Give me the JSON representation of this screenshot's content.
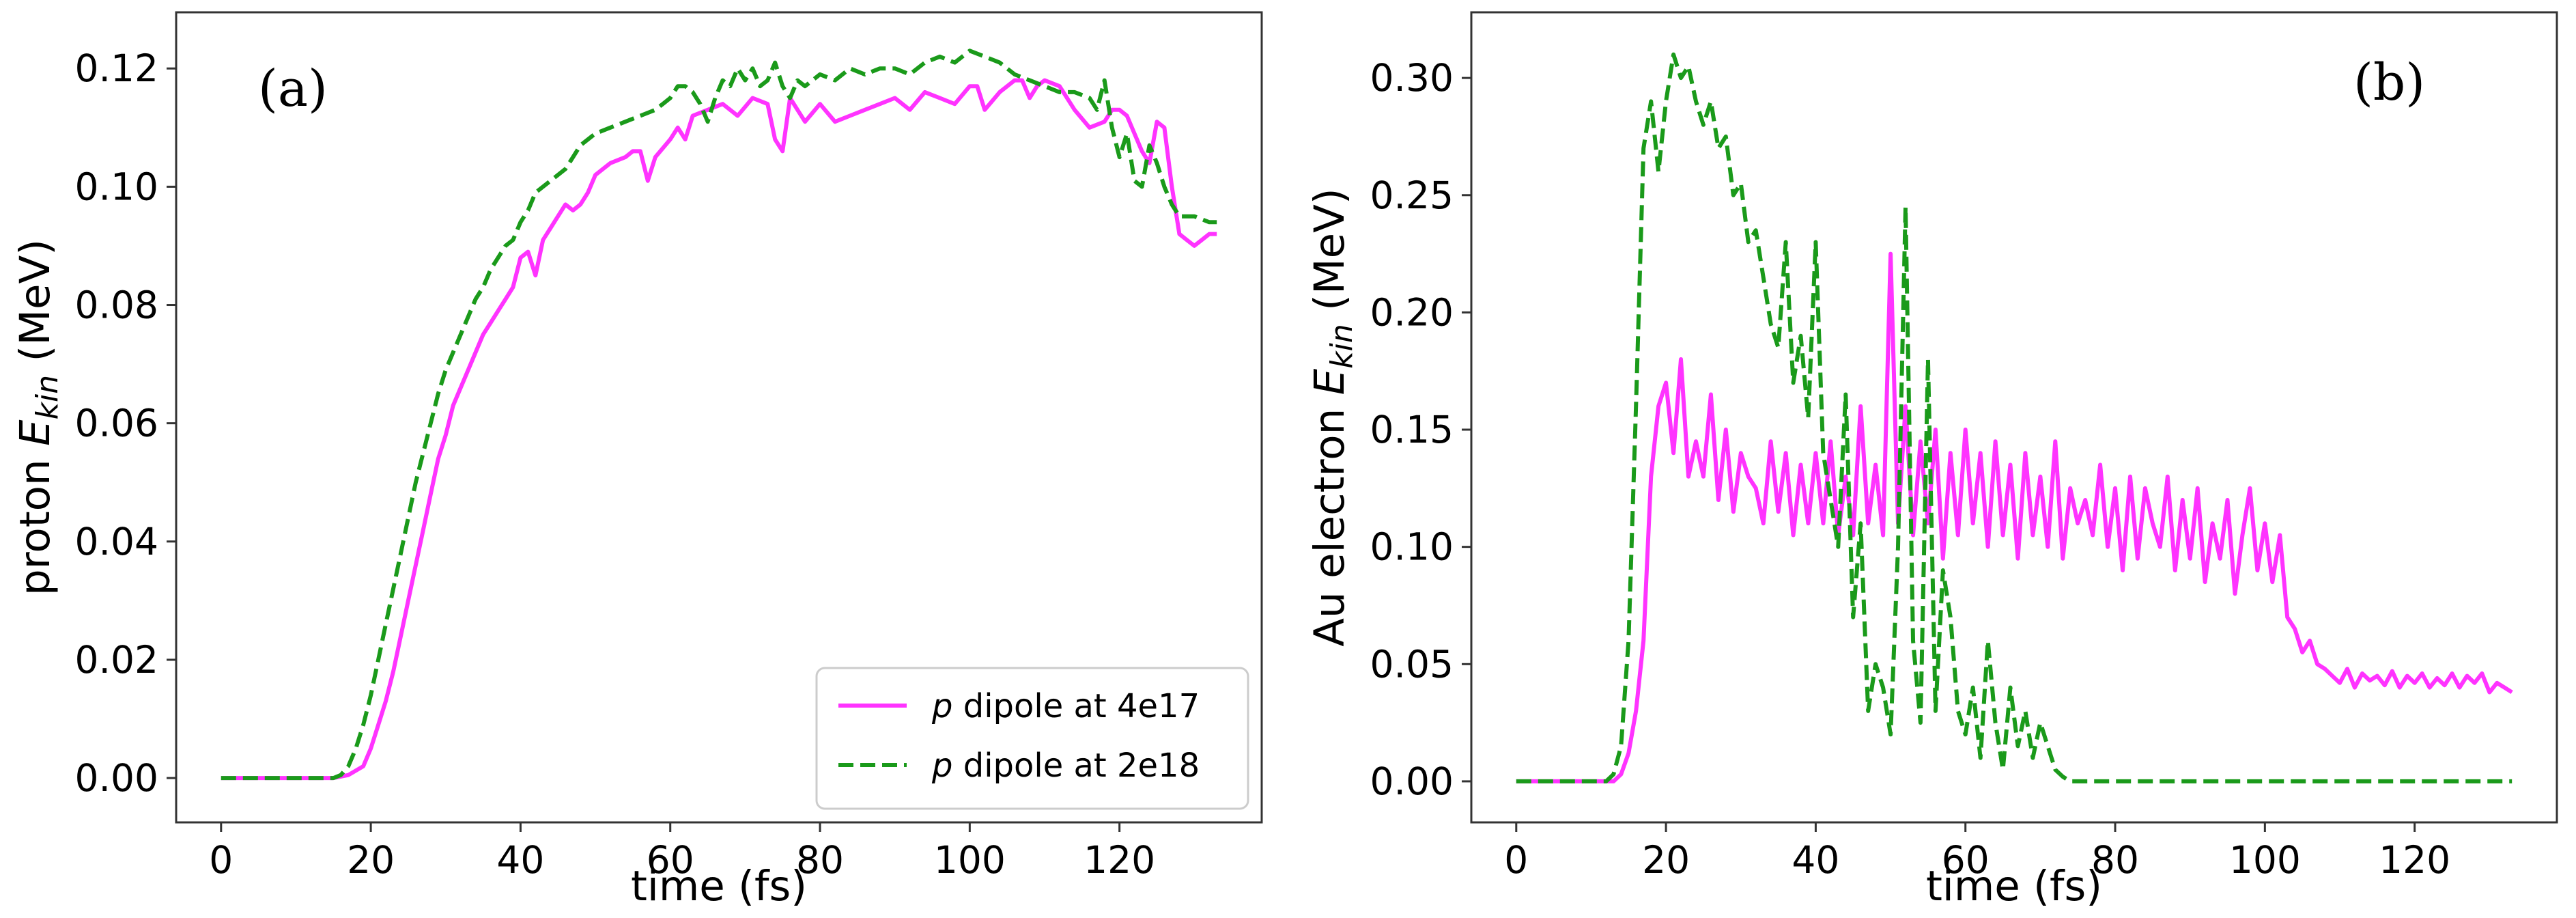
{
  "chart_data": [
    {
      "type": "line",
      "panel_label": "(a)",
      "xlabel": "time (fs)",
      "ylabel_main": "proton ",
      "ylabel_symbol": "E",
      "ylabel_sub": "kin",
      "ylabel_unit": " (MeV)",
      "xlim": [
        -6,
        139
      ],
      "ylim": [
        -0.0075,
        0.1295
      ],
      "xticks": [
        0,
        20,
        40,
        60,
        80,
        100,
        120
      ],
      "yticks": [
        0.0,
        0.02,
        0.04,
        0.06,
        0.08,
        0.1,
        0.12
      ],
      "legend_position": "lower-right",
      "series": [
        {
          "name": "p dipole at 4e17",
          "legend_symbol": "p",
          "legend_rest": " dipole at 4e17",
          "color": "#ff33ff",
          "dash": "solid",
          "x": [
            0,
            8,
            15,
            17,
            19,
            20,
            21,
            22,
            23,
            24,
            25,
            26,
            27,
            28,
            29,
            30,
            31,
            32,
            33,
            34,
            35,
            36,
            37,
            38,
            39,
            40,
            41,
            42,
            43,
            44,
            45,
            46,
            47,
            48,
            49,
            50,
            52,
            54,
            55,
            56,
            57,
            58,
            60,
            61,
            62,
            63,
            65,
            67,
            69,
            71,
            73,
            74,
            75,
            76,
            77,
            78,
            80,
            82,
            84,
            86,
            88,
            90,
            92,
            94,
            96,
            98,
            100,
            101,
            102,
            104,
            106,
            107,
            108,
            109,
            110,
            112,
            114,
            116,
            118,
            119,
            120,
            121,
            122,
            123,
            124,
            125,
            126,
            127,
            128,
            129,
            130,
            131,
            132,
            133
          ],
          "y": [
            0,
            0,
            0,
            0.0005,
            0.002,
            0.005,
            0.009,
            0.013,
            0.018,
            0.024,
            0.03,
            0.036,
            0.042,
            0.048,
            0.054,
            0.058,
            0.063,
            0.066,
            0.069,
            0.072,
            0.075,
            0.077,
            0.079,
            0.081,
            0.083,
            0.088,
            0.089,
            0.085,
            0.091,
            0.093,
            0.095,
            0.097,
            0.096,
            0.097,
            0.099,
            0.102,
            0.104,
            0.105,
            0.106,
            0.106,
            0.101,
            0.105,
            0.108,
            0.11,
            0.108,
            0.112,
            0.113,
            0.114,
            0.112,
            0.115,
            0.114,
            0.108,
            0.106,
            0.115,
            0.113,
            0.111,
            0.114,
            0.111,
            0.112,
            0.113,
            0.114,
            0.115,
            0.113,
            0.116,
            0.115,
            0.114,
            0.117,
            0.117,
            0.113,
            0.116,
            0.118,
            0.118,
            0.115,
            0.117,
            0.118,
            0.117,
            0.113,
            0.11,
            0.111,
            0.113,
            0.113,
            0.112,
            0.109,
            0.106,
            0.104,
            0.111,
            0.11,
            0.1,
            0.092,
            0.091,
            0.09,
            0.091,
            0.092,
            0.092
          ]
        },
        {
          "name": "p dipole at 2e18",
          "legend_symbol": "p",
          "legend_rest": " dipole at 2e18",
          "color": "#1a9a1a",
          "dash": "dashed",
          "x": [
            0,
            8,
            15,
            16,
            17,
            18,
            19,
            20,
            21,
            22,
            23,
            24,
            25,
            26,
            27,
            28,
            29,
            30,
            31,
            32,
            33,
            34,
            35,
            36,
            37,
            38,
            39,
            40,
            41,
            42,
            43,
            44,
            45,
            46,
            47,
            48,
            49,
            50,
            52,
            54,
            56,
            58,
            59,
            60,
            61,
            62,
            63,
            64,
            65,
            66,
            67,
            68,
            69,
            70,
            71,
            72,
            73,
            74,
            75,
            76,
            77,
            78,
            80,
            82,
            84,
            86,
            88,
            90,
            92,
            94,
            96,
            98,
            100,
            102,
            104,
            106,
            108,
            110,
            112,
            114,
            116,
            117,
            118,
            119,
            120,
            121,
            122,
            123,
            124,
            125,
            126,
            127,
            128,
            130,
            132,
            133
          ],
          "y": [
            0,
            0,
            0,
            0.0005,
            0.002,
            0.005,
            0.009,
            0.014,
            0.02,
            0.026,
            0.032,
            0.038,
            0.044,
            0.05,
            0.055,
            0.06,
            0.065,
            0.069,
            0.072,
            0.075,
            0.078,
            0.081,
            0.083,
            0.086,
            0.088,
            0.09,
            0.091,
            0.094,
            0.096,
            0.099,
            0.1,
            0.101,
            0.102,
            0.103,
            0.105,
            0.107,
            0.108,
            0.109,
            0.11,
            0.111,
            0.112,
            0.113,
            0.114,
            0.115,
            0.117,
            0.117,
            0.116,
            0.114,
            0.111,
            0.115,
            0.118,
            0.117,
            0.12,
            0.118,
            0.12,
            0.117,
            0.118,
            0.121,
            0.117,
            0.115,
            0.118,
            0.117,
            0.119,
            0.118,
            0.12,
            0.119,
            0.12,
            0.12,
            0.119,
            0.121,
            0.122,
            0.121,
            0.123,
            0.122,
            0.121,
            0.119,
            0.118,
            0.117,
            0.116,
            0.116,
            0.115,
            0.113,
            0.118,
            0.11,
            0.105,
            0.109,
            0.101,
            0.1,
            0.107,
            0.104,
            0.1,
            0.097,
            0.095,
            0.095,
            0.094,
            0.094
          ]
        }
      ]
    },
    {
      "type": "line",
      "panel_label": "(b)",
      "xlabel": "time (fs)",
      "ylabel_main": "Au electron ",
      "ylabel_symbol": "E",
      "ylabel_sub": "kin",
      "ylabel_unit": " (MeV)",
      "xlim": [
        -6,
        139
      ],
      "ylim": [
        -0.0175,
        0.328
      ],
      "xticks": [
        0,
        20,
        40,
        60,
        80,
        100,
        120
      ],
      "yticks": [
        0.0,
        0.05,
        0.1,
        0.15,
        0.2,
        0.25,
        0.3
      ],
      "legend_position": "none",
      "series": [
        {
          "name": "p dipole at 4e17",
          "color": "#ff33ff",
          "dash": "solid",
          "x": [
            0,
            8,
            13,
            14,
            15,
            16,
            17,
            18,
            19,
            20,
            21,
            22,
            23,
            24,
            25,
            26,
            27,
            28,
            29,
            30,
            31,
            32,
            33,
            34,
            35,
            36,
            37,
            38,
            39,
            40,
            41,
            42,
            43,
            44,
            45,
            46,
            47,
            48,
            49,
            50,
            51,
            52,
            53,
            54,
            55,
            56,
            57,
            58,
            59,
            60,
            61,
            62,
            63,
            64,
            65,
            66,
            67,
            68,
            69,
            70,
            71,
            72,
            73,
            74,
            75,
            76,
            77,
            78,
            79,
            80,
            81,
            82,
            83,
            84,
            85,
            86,
            87,
            88,
            89,
            90,
            91,
            92,
            93,
            94,
            95,
            96,
            97,
            98,
            99,
            100,
            101,
            102,
            103,
            104,
            105,
            106,
            107,
            108,
            109,
            110,
            111,
            112,
            113,
            114,
            115,
            116,
            117,
            118,
            119,
            120,
            121,
            122,
            123,
            124,
            125,
            126,
            127,
            128,
            129,
            130,
            131,
            132,
            133
          ],
          "y": [
            0,
            0,
            0,
            0.003,
            0.012,
            0.03,
            0.06,
            0.13,
            0.16,
            0.17,
            0.14,
            0.18,
            0.13,
            0.145,
            0.13,
            0.165,
            0.12,
            0.15,
            0.115,
            0.14,
            0.13,
            0.125,
            0.11,
            0.145,
            0.115,
            0.14,
            0.105,
            0.135,
            0.11,
            0.14,
            0.11,
            0.145,
            0.105,
            0.13,
            0.105,
            0.16,
            0.11,
            0.135,
            0.105,
            0.225,
            0.11,
            0.16,
            0.105,
            0.145,
            0.11,
            0.15,
            0.095,
            0.14,
            0.105,
            0.15,
            0.11,
            0.14,
            0.1,
            0.145,
            0.105,
            0.135,
            0.095,
            0.14,
            0.105,
            0.13,
            0.1,
            0.145,
            0.095,
            0.125,
            0.11,
            0.12,
            0.105,
            0.135,
            0.1,
            0.125,
            0.09,
            0.13,
            0.095,
            0.125,
            0.11,
            0.1,
            0.13,
            0.09,
            0.12,
            0.095,
            0.125,
            0.085,
            0.11,
            0.095,
            0.12,
            0.08,
            0.105,
            0.125,
            0.09,
            0.11,
            0.085,
            0.105,
            0.07,
            0.065,
            0.055,
            0.06,
            0.05,
            0.048,
            0.045,
            0.042,
            0.048,
            0.04,
            0.046,
            0.043,
            0.045,
            0.041,
            0.047,
            0.04,
            0.045,
            0.042,
            0.046,
            0.04,
            0.044,
            0.041,
            0.046,
            0.04,
            0.045,
            0.042,
            0.046,
            0.038,
            0.042,
            0.04,
            0.038
          ]
        },
        {
          "name": "p dipole at 2e18",
          "color": "#1a9a1a",
          "dash": "dashed",
          "x": [
            0,
            8,
            12,
            13,
            14,
            15,
            16,
            17,
            18,
            19,
            20,
            21,
            22,
            23,
            24,
            25,
            26,
            27,
            28,
            29,
            30,
            31,
            32,
            33,
            34,
            35,
            36,
            37,
            38,
            39,
            40,
            41,
            42,
            43,
            44,
            45,
            46,
            47,
            48,
            49,
            50,
            51,
            52,
            53,
            54,
            55,
            56,
            57,
            58,
            59,
            60,
            61,
            62,
            63,
            64,
            65,
            66,
            67,
            68,
            69,
            70,
            71,
            72,
            73,
            74,
            80,
            90,
            100,
            110,
            120,
            130,
            133
          ],
          "y": [
            0,
            0,
            0,
            0.003,
            0.015,
            0.06,
            0.16,
            0.27,
            0.29,
            0.26,
            0.29,
            0.31,
            0.3,
            0.305,
            0.29,
            0.28,
            0.29,
            0.27,
            0.275,
            0.25,
            0.255,
            0.23,
            0.235,
            0.215,
            0.195,
            0.185,
            0.23,
            0.17,
            0.19,
            0.155,
            0.23,
            0.14,
            0.12,
            0.1,
            0.165,
            0.07,
            0.11,
            0.03,
            0.05,
            0.04,
            0.02,
            0.1,
            0.245,
            0.06,
            0.025,
            0.18,
            0.03,
            0.09,
            0.07,
            0.03,
            0.02,
            0.04,
            0.01,
            0.06,
            0.025,
            0.005,
            0.04,
            0.015,
            0.03,
            0.01,
            0.025,
            0.015,
            0.005,
            0.002,
            0,
            0,
            0,
            0,
            0,
            0,
            0,
            0
          ]
        }
      ]
    }
  ]
}
